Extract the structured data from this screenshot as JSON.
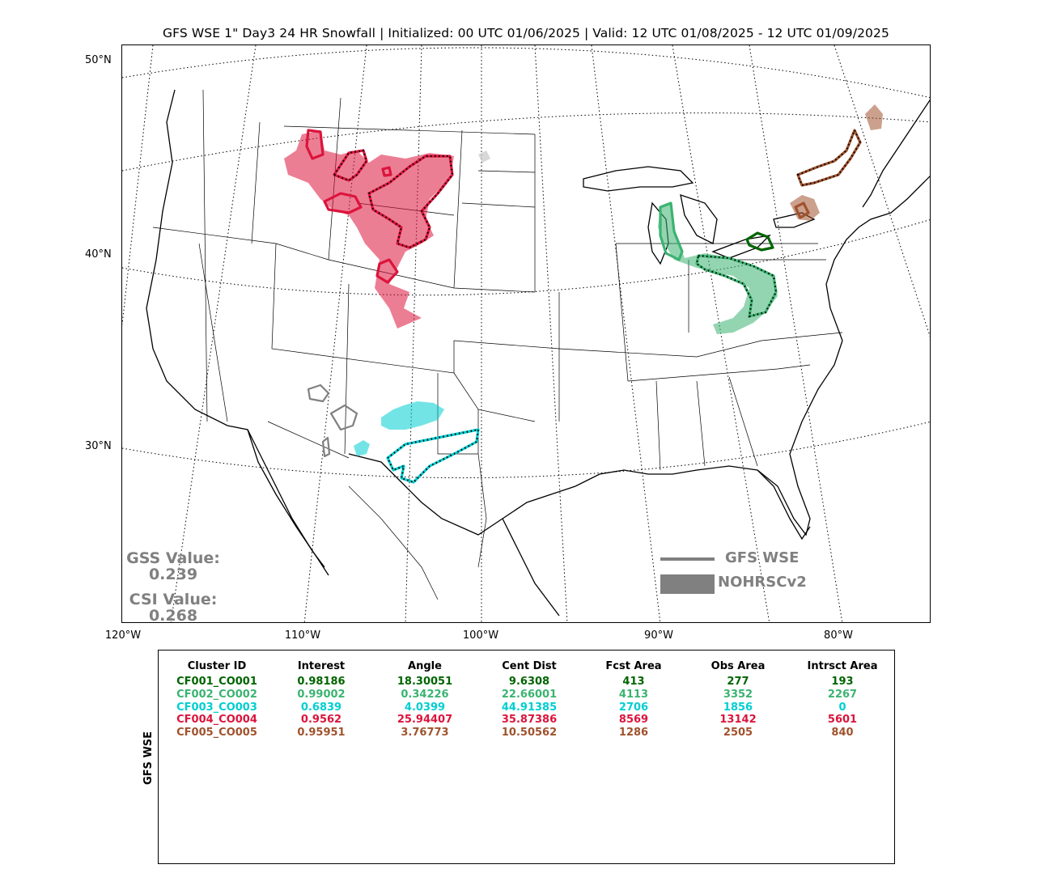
{
  "title": "GFS WSE 1\" Day3 24 HR Snowfall | Initialized: 00 UTC 01/06/2025 | Valid: 12 UTC 01/08/2025 - 12 UTC 01/09/2025",
  "map": {
    "lat_labels": [
      "50°N",
      "40°N",
      "30°N"
    ],
    "lon_labels": [
      "120°W",
      "110°W",
      "100°W",
      "90°W",
      "80°W"
    ]
  },
  "scores": {
    "gss_label": "GSS Value:",
    "gss_value": "0.239",
    "csi_label": "CSI Value:",
    "csi_value": "0.268"
  },
  "legend": {
    "line_label": "GFS WSE",
    "fill_label": "NOHRSCv2"
  },
  "colors": {
    "CF001_CO001": "#006400",
    "CF002_CO002": "#3cb371",
    "CF003_CO003": "#00ced1",
    "CF004_CO004": "#dc143c",
    "CF005_CO005": "#a0522d",
    "unmatched_outline": "#808080"
  },
  "table": {
    "side_label": "GFS WSE",
    "headers": [
      "Cluster ID",
      "Interest",
      "Angle",
      "Cent Dist",
      "Fcst Area",
      "Obs Area",
      "Intrsct Area"
    ],
    "rows": [
      {
        "color": "#006400",
        "cells": [
          "CF001_CO001",
          "0.98186",
          "18.30051",
          "9.6308",
          "413",
          "277",
          "193"
        ]
      },
      {
        "color": "#3cb371",
        "cells": [
          "CF002_CO002",
          "0.99002",
          "0.34226",
          "22.66001",
          "4113",
          "3352",
          "2267"
        ]
      },
      {
        "color": "#00ced1",
        "cells": [
          "CF003_CO003",
          "0.6839",
          "4.0399",
          "44.91385",
          "2706",
          "1856",
          "0"
        ]
      },
      {
        "color": "#dc143c",
        "cells": [
          "CF004_CO004",
          "0.9562",
          "25.94407",
          "35.87386",
          "8569",
          "13142",
          "5601"
        ]
      },
      {
        "color": "#a0522d",
        "cells": [
          "CF005_CO005",
          "0.95951",
          "3.76773",
          "10.50562",
          "1286",
          "2505",
          "840"
        ]
      }
    ]
  }
}
